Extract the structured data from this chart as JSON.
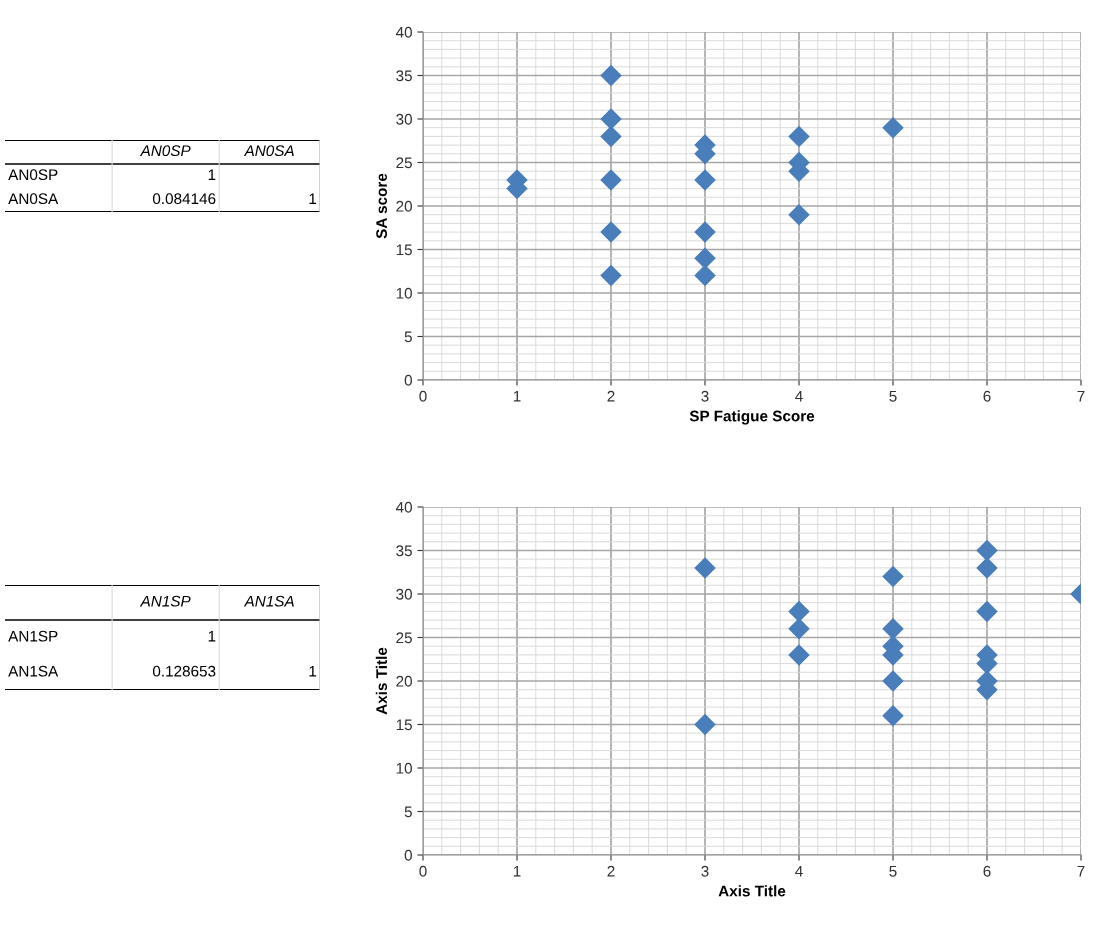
{
  "chart_data": [
    {
      "type": "other",
      "categories": [
        null,
        "AN0SP",
        "AN0SA"
      ],
      "y_categories": [
        "AN0SP",
        "AN0SA"
      ],
      "cell_labels": [
        [
          "1",
          null
        ],
        [
          "0.084146",
          "1"
        ]
      ]
    },
    {
      "type": "scatter",
      "xlabel": "SP Fatigue Score",
      "ylabel": "SA score",
      "x": [
        1,
        1,
        2,
        2,
        2,
        2,
        2,
        2,
        3,
        3,
        3,
        3,
        3,
        3,
        4,
        4,
        4,
        4,
        5
      ],
      "series": [
        {
          "color": "#4a7ebb",
          "values": [
            23,
            22,
            35,
            30,
            28,
            23,
            17,
            12,
            27,
            26,
            23,
            17,
            14,
            12,
            28,
            25,
            24,
            19,
            29
          ]
        }
      ],
      "xlim": [
        0,
        7
      ],
      "xticks": [
        0,
        1,
        2,
        3,
        4,
        5,
        6,
        7
      ],
      "ylim": [
        0,
        40
      ],
      "yticks": [
        0,
        5,
        10,
        15,
        20,
        25,
        30,
        35,
        40
      ],
      "grid": true,
      "marker": "diamond"
    },
    {
      "type": "other",
      "categories": [
        null,
        "AN1SP",
        "AN1SA"
      ],
      "y_categories": [
        "AN1SP",
        "AN1SA"
      ],
      "cell_labels": [
        [
          "1",
          null
        ],
        [
          "0.128653",
          "1"
        ]
      ]
    },
    {
      "type": "scatter",
      "xlabel": "Axis Title",
      "ylabel": "Axis Title",
      "x": [
        3,
        3,
        4,
        4,
        4,
        5,
        5,
        5,
        5,
        5,
        5,
        6,
        6,
        6,
        6,
        6,
        6,
        6,
        7
      ],
      "series": [
        {
          "color": "#4a7ebb",
          "values": [
            33,
            15,
            28,
            26,
            23,
            32,
            26,
            24,
            23,
            20,
            16,
            35,
            33,
            28,
            23,
            22,
            20,
            19,
            30
          ]
        }
      ],
      "xlim": [
        0,
        7
      ],
      "xticks": [
        0,
        1,
        2,
        3,
        4,
        5,
        6,
        7
      ],
      "ylim": [
        0,
        40
      ],
      "yticks": [
        0,
        5,
        10,
        15,
        20,
        25,
        30,
        35,
        40
      ],
      "grid": true,
      "marker": "diamond"
    }
  ]
}
